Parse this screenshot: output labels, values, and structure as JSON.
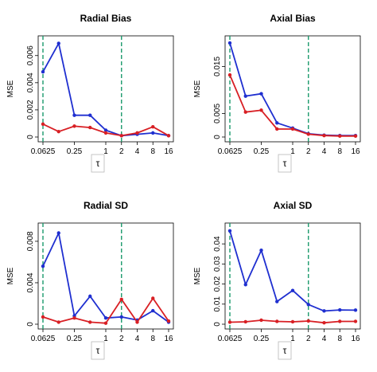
{
  "x_axis_label": "τ",
  "y_axis_label": "MSE",
  "x_tick_labels": [
    "0.0625",
    "0.25",
    "1",
    "2",
    "4",
    "8",
    "16"
  ],
  "colors": {
    "series_blue": "#1f2fd0",
    "series_red": "#d81f24",
    "reference_line": "#1a9a6c"
  },
  "chart_data": [
    {
      "type": "line",
      "title": "Radial Bias",
      "xlabel": "τ",
      "ylabel": "MSE",
      "x": [
        0.0625,
        0.125,
        0.25,
        0.5,
        1,
        2,
        4,
        8,
        16
      ],
      "xscale": "log2",
      "reference_lines_x": [
        0.0625,
        2
      ],
      "ylim": [
        0,
        0.0071
      ],
      "y_ticks": [
        0,
        0.002,
        0.004,
        0.006
      ],
      "y_tick_labels": [
        "0",
        "0.002",
        "0.004",
        "0.006"
      ],
      "series": [
        {
          "color": "blue",
          "values": [
            0.0048,
            0.0069,
            0.0016,
            0.0016,
            0.0005,
            0.0001,
            0.0002,
            0.0003,
            0.0001
          ]
        },
        {
          "color": "red",
          "values": [
            0.00095,
            0.0004,
            0.0008,
            0.0007,
            0.0003,
            0.0001,
            0.0003,
            0.00075,
            0.0001
          ]
        }
      ]
    },
    {
      "type": "line",
      "title": "Axial Bias",
      "xlabel": "τ",
      "ylabel": "MSE",
      "x": [
        0.0625,
        0.125,
        0.25,
        0.5,
        1,
        2,
        4,
        8,
        16
      ],
      "xscale": "log2",
      "reference_lines_x": [
        0.0625,
        2
      ],
      "ylim": [
        0,
        0.0205
      ],
      "y_ticks": [
        0,
        0.005,
        0.015
      ],
      "y_tick_labels": [
        "0",
        "0.005",
        "0.015"
      ],
      "series": [
        {
          "color": "blue",
          "values": [
            0.02,
            0.0087,
            0.0092,
            0.003,
            0.0019,
            0.0007,
            0.0004,
            0.0003,
            0.0003
          ]
        },
        {
          "color": "red",
          "values": [
            0.0132,
            0.0053,
            0.0057,
            0.0017,
            0.0017,
            0.0006,
            0.0003,
            0.0002,
            0.0002
          ]
        }
      ]
    },
    {
      "type": "line",
      "title": "Radial SD",
      "xlabel": "τ",
      "ylabel": "MSE",
      "x": [
        0.0625,
        0.125,
        0.25,
        0.5,
        1,
        2,
        4,
        8,
        16
      ],
      "xscale": "log2",
      "reference_lines_x": [
        0.0625,
        2
      ],
      "ylim": [
        0,
        0.0093
      ],
      "y_ticks": [
        0,
        0.004,
        0.008
      ],
      "y_tick_labels": [
        "0",
        "0.004",
        "0.008"
      ],
      "series": [
        {
          "color": "blue",
          "values": [
            0.0056,
            0.0088,
            0.0008,
            0.0027,
            0.0006,
            0.0007,
            0.0004,
            0.0013,
            0.0002
          ]
        },
        {
          "color": "red",
          "values": [
            0.0007,
            0.0002,
            0.0006,
            0.0002,
            0.0001,
            0.0024,
            0.0002,
            0.0025,
            0.0003
          ]
        }
      ]
    },
    {
      "type": "line",
      "title": "Axial SD",
      "xlabel": "τ",
      "ylabel": "MSE",
      "x": [
        0.0625,
        0.125,
        0.25,
        0.5,
        1,
        2,
        4,
        8,
        16
      ],
      "xscale": "log2",
      "reference_lines_x": [
        0.0625,
        2
      ],
      "ylim": [
        0,
        0.048
      ],
      "y_ticks": [
        0,
        0.01,
        0.02,
        0.03,
        0.04
      ],
      "y_tick_labels": [
        "0",
        "0.01",
        "0.02",
        "0.03",
        "0.04"
      ],
      "series": [
        {
          "color": "blue",
          "values": [
            0.0465,
            0.0197,
            0.0368,
            0.0113,
            0.0168,
            0.0098,
            0.0066,
            0.0071,
            0.007
          ]
        },
        {
          "color": "red",
          "values": [
            0.001,
            0.0012,
            0.002,
            0.0014,
            0.0012,
            0.0016,
            0.0007,
            0.0014,
            0.0014
          ]
        }
      ]
    }
  ]
}
